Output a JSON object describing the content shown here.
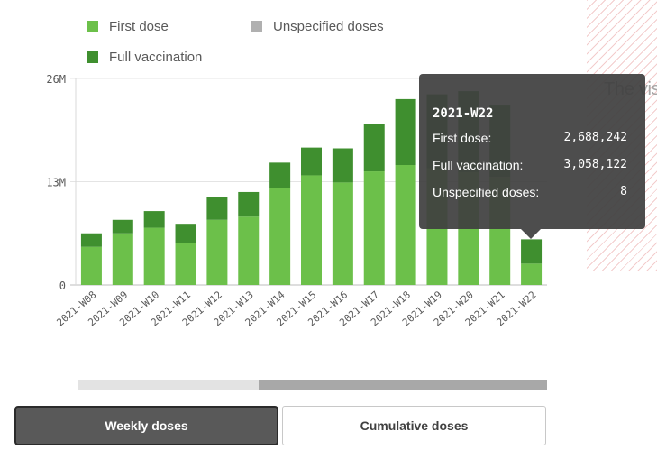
{
  "legend": [
    {
      "label": "First dose",
      "color": "#6cc04a"
    },
    {
      "label": "Unspecified doses",
      "color": "#b0b0b0"
    },
    {
      "label": "Full vaccination",
      "color": "#3f8f2f"
    }
  ],
  "side_panel_text": "The vis",
  "tooltip": {
    "title": "2021-W22",
    "rows": [
      {
        "label": "First dose:",
        "value": "2,688,242"
      },
      {
        "label": "Full vaccination:",
        "value": "3,058,122"
      },
      {
        "label": "Unspecified doses:",
        "value": "8"
      }
    ]
  },
  "buttons": {
    "weekly": "Weekly doses",
    "cumulative": "Cumulative doses"
  },
  "scrollbar": {
    "start_fraction": 0.385,
    "end_fraction": 1.0
  },
  "chart_data": {
    "type": "bar",
    "stacked": true,
    "categories": [
      "2021-W08",
      "2021-W09",
      "2021-W10",
      "2021-W11",
      "2021-W12",
      "2021-W13",
      "2021-W14",
      "2021-W15",
      "2021-W16",
      "2021-W17",
      "2021-W18",
      "2021-W19",
      "2021-W20",
      "2021-W21",
      "2021-W22"
    ],
    "series": [
      {
        "name": "First dose",
        "color": "#6cc04a",
        "values": [
          4800000,
          6500000,
          7200000,
          5300000,
          8200000,
          8600000,
          12200000,
          13800000,
          12900000,
          14300000,
          15100000,
          14700000,
          14200000,
          13600000,
          2688242
        ]
      },
      {
        "name": "Full vaccination",
        "color": "#3f8f2f",
        "values": [
          1700000,
          1700000,
          2100000,
          2400000,
          2900000,
          3100000,
          3200000,
          3500000,
          4300000,
          6000000,
          8300000,
          9300000,
          10200000,
          9100000,
          3058122
        ]
      },
      {
        "name": "Unspecified doses",
        "color": "#b0b0b0",
        "values": [
          0,
          0,
          0,
          0,
          0,
          0,
          0,
          0,
          0,
          0,
          0,
          0,
          0,
          0,
          8
        ]
      }
    ],
    "y_ticks": [
      {
        "value": 0,
        "label": "0"
      },
      {
        "value": 13000000,
        "label": "13M"
      },
      {
        "value": 26000000,
        "label": "26M"
      }
    ],
    "ylim": [
      0,
      26000000
    ],
    "grid": true,
    "legend_position": "top-left"
  }
}
